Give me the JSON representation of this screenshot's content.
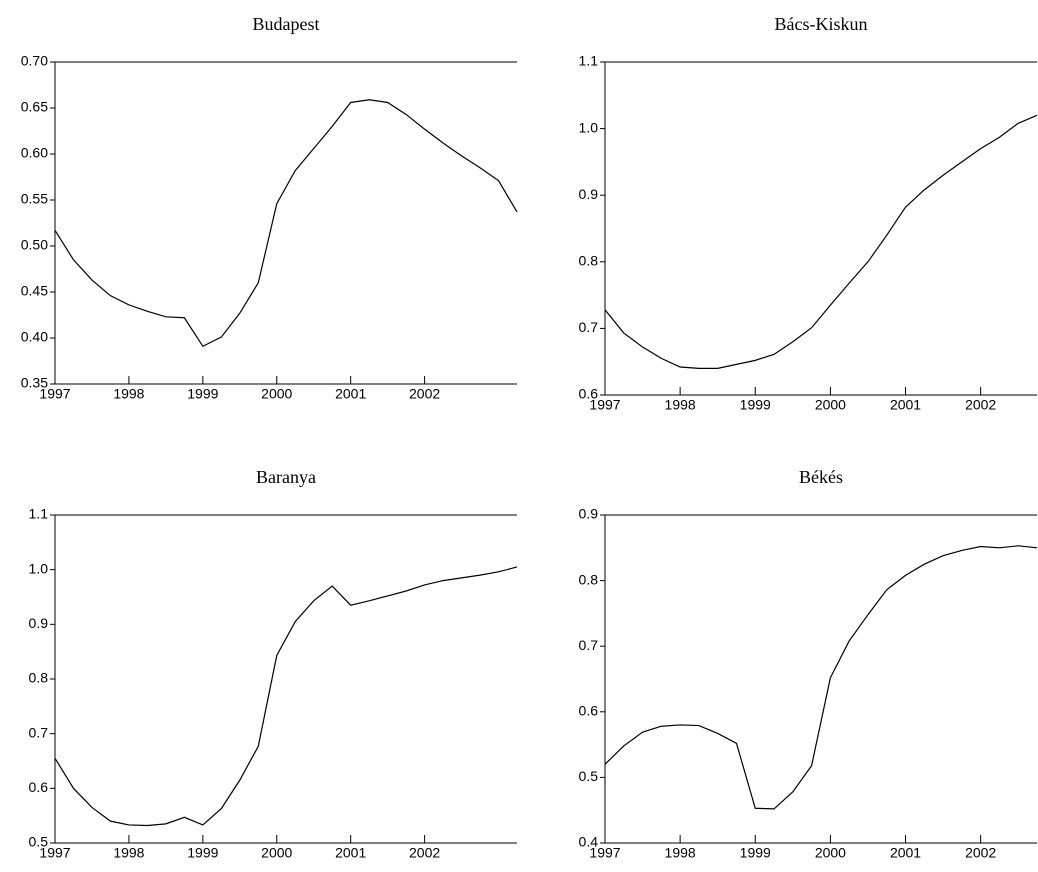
{
  "chart_data": [
    {
      "type": "line",
      "title": "Budapest",
      "color": "#000000",
      "x": [
        1997,
        1997.25,
        1997.5,
        1997.75,
        1998,
        1998.25,
        1998.5,
        1998.75,
        1999,
        1999.25,
        1999.5,
        1999.75,
        2000,
        2000.25,
        2000.5,
        2000.75,
        2001,
        2001.25,
        2001.5,
        2001.75,
        2002,
        2002.25,
        2002.5,
        2002.75,
        2003,
        2003.25
      ],
      "values": [
        0.517,
        0.485,
        0.463,
        0.446,
        0.436,
        0.429,
        0.423,
        0.422,
        0.391,
        0.401,
        0.427,
        0.46,
        0.546,
        0.582,
        0.606,
        0.63,
        0.656,
        0.659,
        0.656,
        0.643,
        0.627,
        0.612,
        0.598,
        0.585,
        0.571,
        0.537
      ],
      "xlim": [
        1997,
        2003.25
      ],
      "xticks": [
        1997,
        1998,
        1999,
        2000,
        2001,
        2002
      ],
      "ylim": [
        0.35,
        0.7
      ],
      "yticks": [
        0.35,
        {
          "value": 0.4,
          "label": "0.40"
        },
        0.45,
        {
          "value": 0.5,
          "label": "0.50"
        },
        0.55,
        {
          "value": 0.6,
          "label": "0.60"
        },
        0.65,
        {
          "value": 0.7,
          "label": "0.70"
        }
      ]
    },
    {
      "type": "line",
      "title": "Bács-Kiskun",
      "color": "#000000",
      "x": [
        1997,
        1997.25,
        1997.5,
        1997.75,
        1998,
        1998.25,
        1998.5,
        1998.75,
        1999,
        1999.25,
        1999.5,
        1999.75,
        2000,
        2000.25,
        2000.5,
        2000.75,
        2001,
        2001.25,
        2001.5,
        2001.75,
        2002,
        2002.25,
        2002.5,
        2002.75
      ],
      "values": [
        0.728,
        0.693,
        0.672,
        0.655,
        0.642,
        0.64,
        0.64,
        0.646,
        0.652,
        0.661,
        0.68,
        0.701,
        0.735,
        0.768,
        0.8,
        0.84,
        0.882,
        0.908,
        0.93,
        0.95,
        0.97,
        0.987,
        1.008,
        1.02
      ],
      "xlim": [
        1997,
        2002.75
      ],
      "xticks": [
        1997,
        1998,
        1999,
        2000,
        2001,
        2002
      ],
      "ylim": [
        0.6,
        1.1
      ],
      "yticks": [
        0.6,
        0.7,
        0.8,
        0.9,
        {
          "value": 1,
          "label": "1.0"
        },
        1.1
      ]
    },
    {
      "type": "line",
      "title": "Baranya",
      "color": "#000000",
      "x": [
        1997,
        1997.25,
        1997.5,
        1997.75,
        1998,
        1998.25,
        1998.5,
        1998.75,
        1999,
        1999.25,
        1999.5,
        1999.75,
        2000,
        2000.25,
        2000.5,
        2000.75,
        2001,
        2001.25,
        2001.5,
        2001.75,
        2002,
        2002.25,
        2002.5,
        2002.75,
        2003,
        2003.25
      ],
      "values": [
        0.655,
        0.6,
        0.565,
        0.54,
        0.533,
        0.532,
        0.535,
        0.547,
        0.533,
        0.563,
        0.615,
        0.677,
        0.843,
        0.905,
        0.943,
        0.97,
        0.935,
        0.943,
        0.952,
        0.961,
        0.972,
        0.98,
        0.985,
        0.99,
        0.996,
        1.005
      ],
      "xlim": [
        1997,
        2003.25
      ],
      "xticks": [
        1997,
        1998,
        1999,
        2000,
        2001,
        2002
      ],
      "ylim": [
        0.5,
        1.1
      ],
      "yticks": [
        0.5,
        0.6,
        0.7,
        0.8,
        0.9,
        {
          "value": 1,
          "label": "1.0"
        },
        1.1
      ]
    },
    {
      "type": "line",
      "title": "Békés",
      "color": "#000000",
      "x": [
        1997,
        1997.25,
        1997.5,
        1997.75,
        1998,
        1998.25,
        1998.5,
        1998.75,
        1999,
        1999.25,
        1999.5,
        1999.75,
        2000,
        2000.25,
        2000.5,
        2000.75,
        2001,
        2001.25,
        2001.5,
        2001.75,
        2002,
        2002.25,
        2002.5,
        2002.75
      ],
      "values": [
        0.52,
        0.548,
        0.569,
        0.578,
        0.58,
        0.579,
        0.567,
        0.552,
        0.453,
        0.452,
        0.478,
        0.518,
        0.652,
        0.708,
        0.748,
        0.786,
        0.808,
        0.825,
        0.838,
        0.846,
        0.852,
        0.85,
        0.853,
        0.85
      ],
      "xlim": [
        1997,
        2002.75
      ],
      "xticks": [
        1997,
        1998,
        1999,
        2000,
        2001,
        2002
      ],
      "ylim": [
        0.4,
        0.9
      ],
      "yticks": [
        0.4,
        0.5,
        0.6,
        0.7,
        0.8,
        0.9
      ]
    }
  ]
}
